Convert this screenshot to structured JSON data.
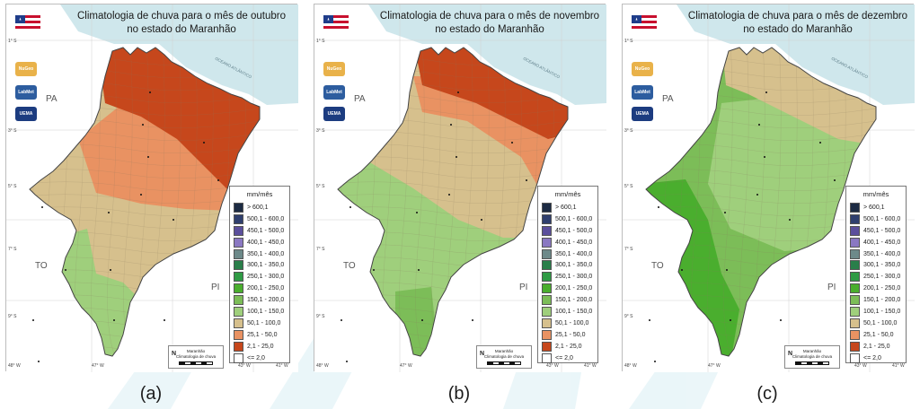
{
  "colors": {
    "water": "#cfe7ec",
    "land_outside": "#ffffff",
    "class_25_50": "#e99262",
    "class_2_25": "#c6471c",
    "class_50_100": "#d6c08d",
    "class_100_150": "#9fcf7c",
    "class_150_200": "#7cbd58",
    "class_200_250": "#4aae2e"
  },
  "legend": {
    "title": "mm/mês",
    "items": [
      {
        "label": "> 600,1",
        "color": "#1c2b43"
      },
      {
        "label": "500,1 - 600,0",
        "color": "#2f3f6e"
      },
      {
        "label": "450,1 - 500,0",
        "color": "#5b4f9c"
      },
      {
        "label": "400,1 - 450,0",
        "color": "#8a78c2"
      },
      {
        "label": "350,1 - 400,0",
        "color": "#6d8a8a"
      },
      {
        "label": "300,1 - 350,0",
        "color": "#2a7f4a"
      },
      {
        "label": "250,1 - 300,0",
        "color": "#2f9b45"
      },
      {
        "label": "200,1 - 250,0",
        "color": "#4aae2e"
      },
      {
        "label": "150,1 - 200,0",
        "color": "#7cbd58"
      },
      {
        "label": "100,1 - 150,0",
        "color": "#9fcf7c"
      },
      {
        "label": "50,1 - 100,0",
        "color": "#d6c08d"
      },
      {
        "label": "25,1 - 50,0",
        "color": "#e99262"
      },
      {
        "label": "2,1 - 25,0",
        "color": "#c6471c"
      },
      {
        "label": "<= 2,0",
        "color": "#ffffff"
      }
    ]
  },
  "panels": [
    {
      "title_line1": "Climatologia de chuva para o mês de outubro",
      "title_line2": "no estado do Maranhão",
      "caption": "(a)"
    },
    {
      "title_line1": "Climatologia de chuva para o mês de novembro",
      "title_line2": "no estado do Maranhão",
      "caption": "(b)"
    },
    {
      "title_line1": "Climatologia de chuva para o mês de dezembro",
      "title_line2": "no estado do Maranhão",
      "caption": "(c)"
    }
  ],
  "map_labels": {
    "pa": "PA",
    "to": "TO",
    "pi": "PI",
    "ocean": "OCEANO ATLÂNTICO",
    "north": "N",
    "scale_title": "Maranhão",
    "scale_sub": "Climatologia de chuva",
    "lon_48": "48° W",
    "lon_47": "47° W",
    "lon_45": "45° W",
    "lon_43": "43° W",
    "lon_41": "41° W",
    "lat_1": "1° S",
    "lat_3": "3° S",
    "lat_5": "5° S",
    "lat_7": "7° S",
    "lat_9": "9° S"
  },
  "logos": {
    "nugeo": "NuGeo",
    "labmet": "LabMet",
    "uema": "UEMA"
  }
}
